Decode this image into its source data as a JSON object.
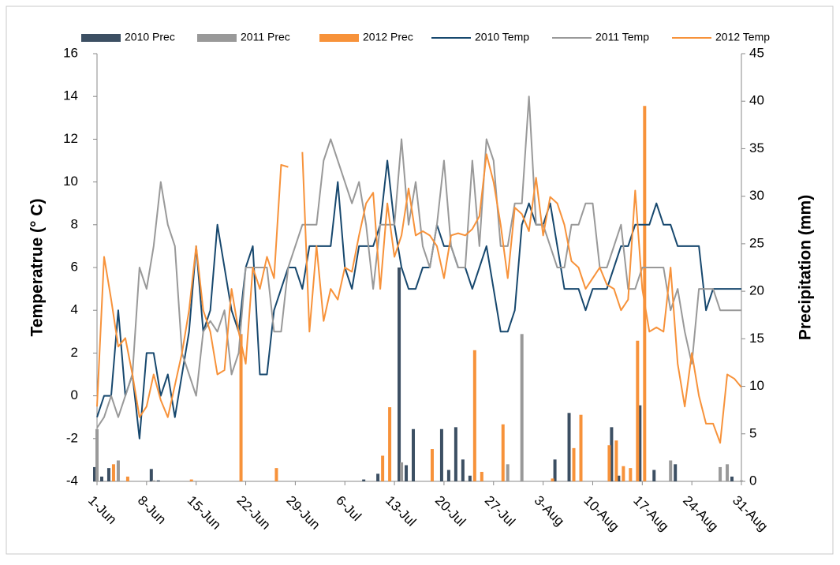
{
  "chart_data": {
    "type": "bar-line",
    "y_label": "Temperatrue (° C)",
    "y2_label": "Precipitation (mm)",
    "categories": [
      "1-Jun",
      null,
      null,
      null,
      null,
      null,
      null,
      "8-Jun",
      null,
      null,
      null,
      null,
      null,
      null,
      "15-Jun",
      null,
      null,
      null,
      null,
      null,
      null,
      "22-Jun",
      null,
      null,
      null,
      null,
      null,
      null,
      "29-Jun",
      null,
      null,
      null,
      null,
      null,
      null,
      "6-Jul",
      null,
      null,
      null,
      null,
      null,
      null,
      "13-Jul",
      null,
      null,
      null,
      null,
      null,
      null,
      "20-Jul",
      null,
      null,
      null,
      null,
      null,
      null,
      "27-Jul",
      null,
      null,
      null,
      null,
      null,
      null,
      "3-Aug",
      null,
      null,
      null,
      null,
      null,
      null,
      "10-Aug",
      null,
      null,
      null,
      null,
      null,
      null,
      "17-Aug",
      null,
      null,
      null,
      null,
      null,
      null,
      "24-Aug",
      null,
      null,
      null,
      null,
      null,
      null,
      "31-Aug"
    ],
    "ylim": [
      -4,
      16
    ],
    "yticks": [
      -4,
      -2,
      0,
      2,
      4,
      6,
      8,
      10,
      12,
      14,
      16
    ],
    "y2lim": [
      0,
      45
    ],
    "y2ticks": [
      0,
      5,
      10,
      15,
      20,
      25,
      30,
      35,
      40,
      45
    ],
    "series": [
      {
        "name": "2010 Prec",
        "type": "bar",
        "axis": "y2",
        "color": "#3c4f63",
        "values": [
          1.5,
          0.5,
          1.4,
          0,
          0,
          0,
          0,
          0,
          1.3,
          0.1,
          0,
          0,
          0,
          0,
          0,
          0,
          0,
          0,
          0,
          0,
          0,
          0,
          0,
          0,
          0,
          0,
          0,
          0,
          0,
          0,
          0,
          0,
          0,
          0,
          0,
          0,
          0,
          0,
          0.2,
          0,
          0.8,
          0,
          0,
          22.5,
          1.7,
          5.5,
          0,
          0,
          0,
          5.5,
          1.2,
          5.7,
          2.3,
          0.6,
          0,
          0,
          0,
          0,
          0,
          0,
          0,
          0,
          0,
          0,
          0,
          2.3,
          0,
          7.2,
          0,
          0,
          0,
          0,
          0,
          5.7,
          0.6,
          0,
          0,
          8,
          0,
          1.2,
          0,
          0,
          1.8,
          0,
          0,
          0,
          0,
          0,
          0,
          0,
          0.5,
          0
        ]
      },
      {
        "name": "2011 Prec",
        "type": "bar",
        "axis": "y2",
        "color": "#999999",
        "values": [
          5.5,
          0,
          0,
          2.2,
          0,
          0,
          0,
          0,
          0.1,
          0,
          0,
          0,
          0,
          0,
          0,
          0,
          0,
          0,
          0,
          0,
          0,
          0,
          0,
          0,
          0,
          0,
          0,
          0,
          0,
          0,
          0,
          0,
          0,
          0,
          0,
          0,
          0,
          0,
          0,
          0,
          0,
          0,
          0,
          2,
          0,
          0,
          0,
          0,
          0,
          0,
          0,
          0,
          0,
          0,
          0,
          0,
          0,
          0,
          1.8,
          0,
          15.5,
          0,
          0,
          0,
          0,
          0,
          0,
          0,
          0,
          0,
          0,
          0,
          0,
          0,
          0,
          0,
          0,
          0,
          0,
          0,
          0,
          2.2,
          0,
          0,
          0,
          0,
          0,
          0,
          1.5,
          1.8,
          0,
          0.1
        ]
      },
      {
        "name": "2012 Prec",
        "type": "bar",
        "axis": "y2",
        "color": "#f7923a",
        "values": [
          0,
          0,
          1.8,
          0,
          0.5,
          0,
          0,
          0,
          0,
          0,
          0,
          0,
          0,
          0.2,
          0,
          0,
          0,
          0,
          0,
          0,
          15.5,
          0,
          0,
          0,
          0,
          1.4,
          0,
          0,
          0,
          0,
          0,
          0,
          0,
          0,
          0,
          0,
          0,
          0,
          0,
          0,
          2.7,
          7.8,
          0,
          0,
          0,
          0,
          0,
          3.4,
          0,
          0,
          0,
          0,
          0,
          13.8,
          1,
          0,
          0,
          6,
          0,
          0,
          0,
          0,
          0,
          0,
          0.3,
          0,
          0,
          3.5,
          7,
          0,
          0,
          0,
          3.8,
          4.3,
          1.6,
          1.4,
          14.8,
          39.5,
          0,
          0,
          0,
          0,
          0,
          0,
          0,
          0,
          0,
          0,
          0,
          0,
          0,
          0
        ]
      },
      {
        "name": "2010 Temp",
        "type": "line",
        "color": "#17486e",
        "values": [
          -1,
          0,
          0,
          4,
          0,
          1,
          -2,
          2,
          2,
          0,
          1,
          -1,
          1,
          3,
          7,
          3,
          4,
          8,
          6,
          4,
          3,
          6,
          7,
          1,
          1,
          4,
          5,
          6,
          6,
          5,
          7,
          7,
          7,
          7,
          10,
          6,
          5,
          7,
          7,
          7,
          8,
          11,
          8,
          6,
          5,
          5,
          6,
          6,
          8,
          7,
          7,
          6,
          6,
          5,
          6,
          7,
          5,
          3,
          3,
          4,
          8,
          9,
          8,
          8,
          9,
          7,
          5,
          5,
          5,
          4,
          5,
          5,
          5,
          6,
          7,
          7,
          8,
          8,
          8,
          9,
          8,
          8,
          7,
          7,
          7,
          7,
          4,
          5,
          5,
          5,
          5,
          5
        ]
      },
      {
        "name": "2011 Temp",
        "type": "line",
        "color": "#999999",
        "values": [
          -1.5,
          -1,
          0,
          -1,
          0,
          1,
          6,
          5,
          7,
          10,
          8,
          7,
          2,
          1,
          0,
          3,
          3.5,
          3,
          4,
          1,
          2,
          6,
          6,
          6,
          6,
          3,
          3,
          6,
          7,
          8,
          8,
          8,
          11,
          12,
          11,
          10,
          9,
          10,
          8,
          5,
          8,
          8,
          8,
          12,
          8,
          10,
          7,
          6,
          8,
          11,
          7,
          6,
          6,
          11,
          7,
          12,
          11,
          7,
          7,
          9,
          9,
          14,
          8,
          8,
          7,
          6,
          6,
          8,
          8,
          9,
          9,
          6,
          6,
          7,
          8,
          5,
          5,
          6,
          6,
          6,
          6,
          4,
          5,
          3,
          1.5,
          5,
          5,
          5,
          4,
          4,
          4,
          4
        ]
      },
      {
        "name": "2012 Temp",
        "type": "line",
        "color": "#f7923a",
        "values": [
          -0.5,
          6.5,
          4.5,
          2.3,
          2.7,
          1,
          -1,
          -0.5,
          1,
          -0.2,
          -1,
          0.5,
          2,
          4,
          7,
          4,
          3,
          1,
          1.2,
          5,
          3,
          1.5,
          6,
          5,
          6.5,
          5.5,
          10.8,
          10.7,
          null,
          11.4,
          3,
          7,
          3.5,
          5,
          4.5,
          6,
          5.8,
          7.5,
          9,
          9.5,
          5,
          9,
          6.5,
          7.5,
          9.7,
          7.5,
          7.7,
          7.5,
          7,
          5.5,
          7.5,
          7.6,
          7.5,
          7.8,
          8.4,
          11.3,
          10,
          8,
          5.5,
          8.8,
          8.5,
          7.7,
          10.2,
          7.5,
          9.3,
          9,
          8,
          6.3,
          6,
          5,
          5.5,
          6,
          5.2,
          5,
          4,
          4.5,
          9.6,
          5,
          3,
          3.2,
          3,
          6,
          1.5,
          -0.5,
          2,
          0,
          -1.3,
          -1.3,
          -2.2,
          1,
          0.8,
          0.4
        ]
      }
    ]
  }
}
